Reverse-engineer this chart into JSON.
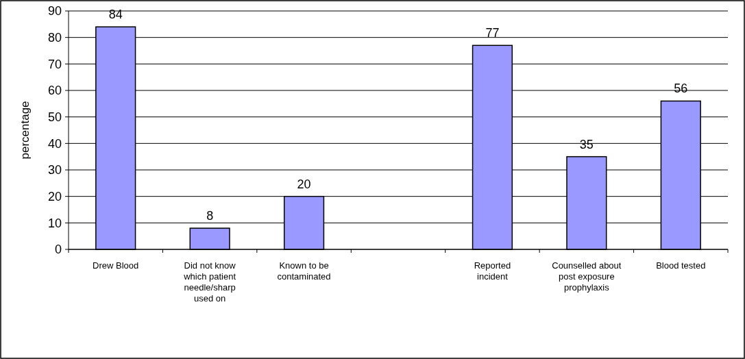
{
  "chart_data": {
    "type": "bar",
    "categories": [
      "Drew Blood",
      "Did not know which patient needle/sharp used on",
      "Known to be contaminated",
      null,
      "Reported incident",
      "Counselled about post exposure prophylaxis",
      "Blood tested"
    ],
    "values": [
      84,
      8,
      20,
      null,
      77,
      35,
      56
    ],
    "color": "#9999ff",
    "ylabel": "percentage",
    "ylim": [
      0,
      90
    ],
    "yticks": [
      0,
      10,
      20,
      30,
      40,
      50,
      60,
      70,
      80,
      90
    ],
    "grid": "y",
    "data_labels": true
  }
}
